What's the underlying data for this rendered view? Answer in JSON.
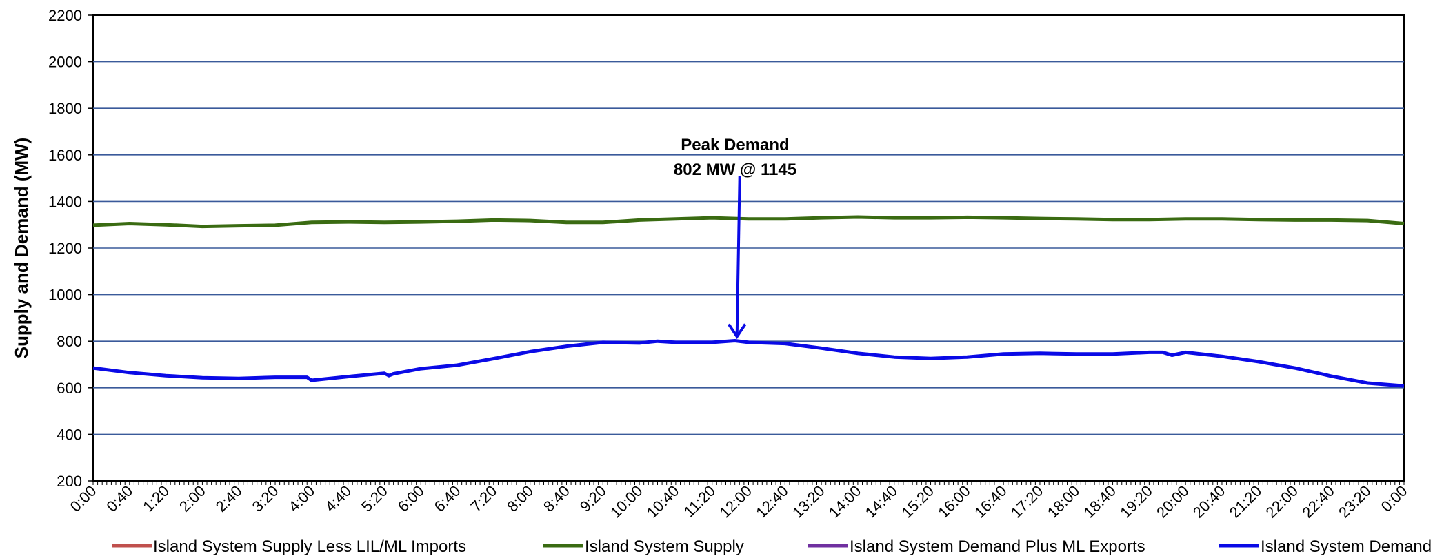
{
  "chart_data": {
    "type": "line",
    "title": "",
    "xlabel": "",
    "ylabel": "Supply and Demand (MW)",
    "ylim": [
      200,
      2200
    ],
    "yticks": [
      200,
      400,
      600,
      800,
      1000,
      1200,
      1400,
      1600,
      1800,
      2000,
      2200
    ],
    "x_tick_labels": [
      "0:00",
      "0:40",
      "1:20",
      "2:00",
      "2:40",
      "3:20",
      "4:00",
      "4:40",
      "5:20",
      "6:00",
      "6:40",
      "7:20",
      "8:00",
      "8:40",
      "9:20",
      "10:00",
      "10:40",
      "11:20",
      "12:00",
      "12:40",
      "13:20",
      "14:00",
      "14:40",
      "15:20",
      "16:00",
      "16:40",
      "17:20",
      "18:00",
      "18:40",
      "19:20",
      "20:00",
      "20:40",
      "21:20",
      "22:00",
      "22:40",
      "23:20",
      "0:00"
    ],
    "grid": true,
    "legend_position": "bottom",
    "annotation": {
      "line1": "Peak Demand",
      "line2": "802 MW @ 1145",
      "x": "11:45",
      "y": 802
    },
    "series": [
      {
        "name": "Island System Supply Less LIL/ML Imports",
        "color": "#c0504d",
        "values": []
      },
      {
        "name": "Island System Supply",
        "color": "#3a6b12",
        "x": [
          "0:00",
          "0:40",
          "1:20",
          "2:00",
          "2:40",
          "3:20",
          "4:00",
          "4:40",
          "5:20",
          "6:00",
          "6:40",
          "7:20",
          "8:00",
          "8:40",
          "9:20",
          "10:00",
          "10:40",
          "11:20",
          "12:00",
          "12:40",
          "13:20",
          "14:00",
          "14:40",
          "15:20",
          "16:00",
          "16:40",
          "17:20",
          "18:00",
          "18:40",
          "19:20",
          "20:00",
          "20:40",
          "21:20",
          "22:00",
          "22:40",
          "23:20",
          "24:00"
        ],
        "values": [
          1298,
          1305,
          1300,
          1293,
          1296,
          1298,
          1310,
          1312,
          1310,
          1312,
          1315,
          1320,
          1318,
          1310,
          1310,
          1320,
          1325,
          1330,
          1325,
          1325,
          1330,
          1333,
          1330,
          1330,
          1332,
          1330,
          1327,
          1325,
          1322,
          1322,
          1325,
          1325,
          1322,
          1320,
          1320,
          1318,
          1305
        ]
      },
      {
        "name": "Island System Demand Plus ML Exports",
        "color": "#7030a0",
        "values": []
      },
      {
        "name": "Island System Demand",
        "color": "#0a0ae6",
        "x": [
          "0:00",
          "0:40",
          "1:20",
          "2:00",
          "2:40",
          "3:20",
          "3:55",
          "4:00",
          "4:40",
          "5:20",
          "5:25",
          "5:30",
          "6:00",
          "6:40",
          "7:20",
          "8:00",
          "8:40",
          "9:20",
          "10:00",
          "10:20",
          "10:40",
          "11:20",
          "11:45",
          "12:00",
          "12:40",
          "13:20",
          "14:00",
          "14:40",
          "15:20",
          "16:00",
          "16:40",
          "17:20",
          "18:00",
          "18:40",
          "19:20",
          "19:35",
          "19:45",
          "20:00",
          "20:40",
          "21:20",
          "22:00",
          "22:40",
          "23:20",
          "24:00"
        ],
        "values": [
          685,
          665,
          652,
          643,
          640,
          645,
          645,
          632,
          648,
          662,
          652,
          660,
          682,
          697,
          725,
          755,
          778,
          795,
          792,
          800,
          795,
          795,
          802,
          795,
          790,
          770,
          748,
          732,
          726,
          732,
          745,
          748,
          745,
          745,
          752,
          752,
          740,
          752,
          735,
          712,
          685,
          650,
          620,
          608
        ]
      }
    ]
  }
}
